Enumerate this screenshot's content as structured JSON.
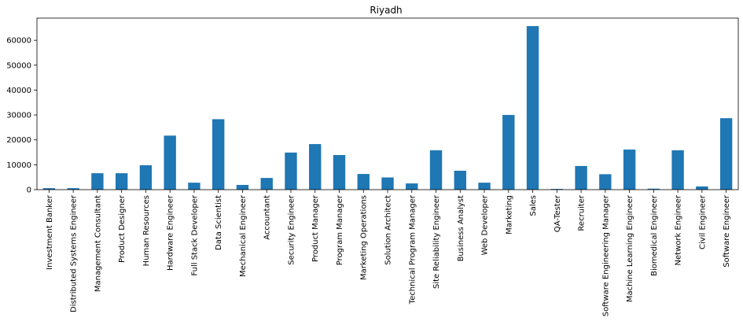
{
  "chart_data": {
    "type": "bar",
    "title": "Riyadh",
    "xlabel": "",
    "ylabel": "",
    "categories": [
      "Investment Banker",
      "Distributed Systems Engineer",
      "Management Consultant",
      "Product Designer",
      "Human Resources",
      "Hardware Engineer",
      "Full Stack Developer",
      "Data Scientist",
      "Mechanical Engineer",
      "Accountant",
      "Security Engineer",
      "Product Manager",
      "Program Manager",
      "Marketing Operations",
      "Solution Architect",
      "Technical Program Manager",
      "Site Reliability Engineer",
      "Business Analyst",
      "Web Developer",
      "Marketing",
      "Sales",
      "QA-Tester",
      "Recruiter",
      "Software Engineering Manager",
      "Machine Learning Engineer",
      "Biomedical Engineer",
      "Network Engineer",
      "Civil Engineer",
      "Software Engineer"
    ],
    "values": [
      600,
      600,
      6600,
      6600,
      9800,
      21700,
      2800,
      28300,
      1900,
      4700,
      14900,
      18300,
      13900,
      6300,
      4900,
      2500,
      15800,
      7600,
      2800,
      30000,
      65700,
      300,
      9500,
      6200,
      16100,
      400,
      15800,
      1300,
      28700
    ],
    "ylim": [
      0,
      68900
    ],
    "yticks": [
      0,
      10000,
      20000,
      30000,
      40000,
      50000,
      60000
    ],
    "bar_color": "#1f77b4",
    "grid": false,
    "legend": false
  }
}
